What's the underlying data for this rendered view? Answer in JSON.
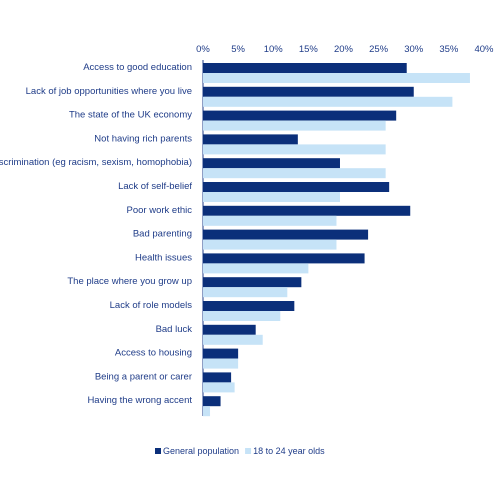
{
  "chart_data": {
    "type": "bar",
    "orientation": "horizontal",
    "categories": [
      "Access to good education",
      "Lack of job opportunities where you live",
      "The state of the UK economy",
      "Not having rich parents",
      "Discrimination (eg racism, sexism, homophobia)",
      "Lack of self-belief",
      "Poor work ethic",
      "Bad parenting",
      "Health issues",
      "The place where you grow up",
      "Lack of role models",
      "Bad luck",
      "Access to housing",
      "Being a parent or carer",
      "Having the wrong accent"
    ],
    "series": [
      {
        "name": "General population",
        "color": "#0b2f7a",
        "values": [
          29,
          30,
          27.5,
          13.5,
          19.5,
          26.5,
          29.5,
          23.5,
          23,
          14,
          13,
          7.5,
          5,
          4,
          2.5
        ]
      },
      {
        "name": "18 to 24 year olds",
        "color": "#c6e3f7",
        "values": [
          38,
          35.5,
          26,
          26,
          26,
          19.5,
          19,
          19,
          15,
          12,
          11,
          8.5,
          5,
          4.5,
          1
        ]
      }
    ],
    "xlim": [
      0,
      40
    ],
    "xticks": [
      "0%",
      "5%",
      "10%",
      "15%",
      "20%",
      "25%",
      "30%",
      "35%",
      "40%"
    ],
    "title": "",
    "xlabel": "",
    "ylabel": "",
    "grid": false,
    "legend_position": "bottom"
  }
}
